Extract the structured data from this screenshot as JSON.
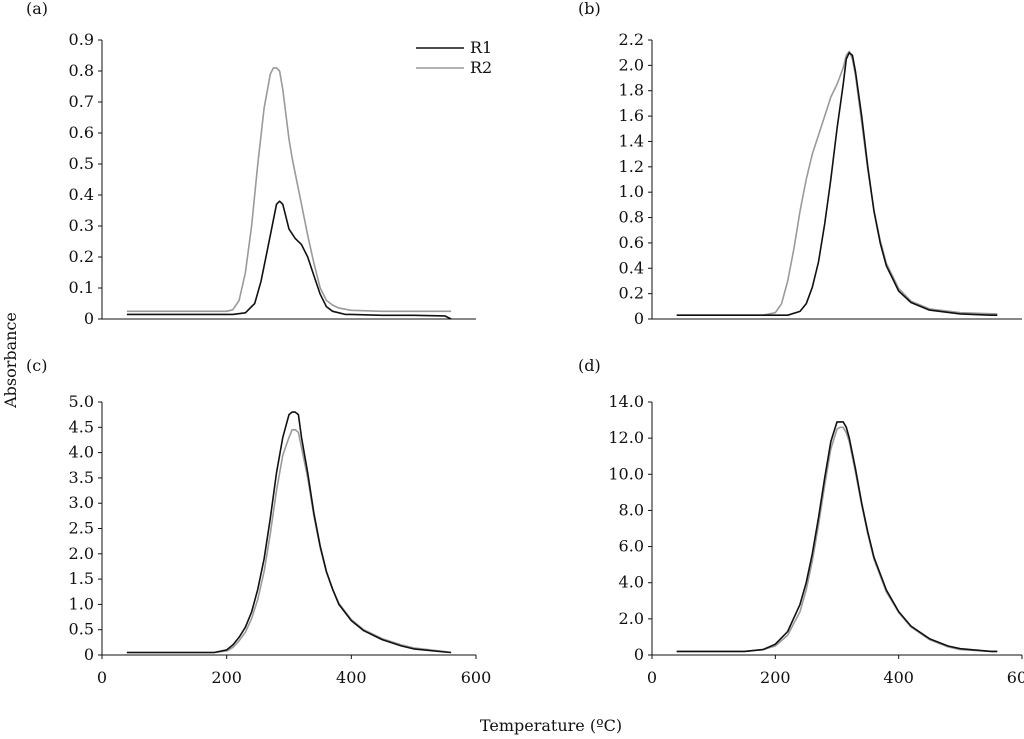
{
  "figure": {
    "ylabel": "Absorbance",
    "xlabel": "Temperature (ºC)",
    "legend": {
      "placement": "top-right of panel (a)",
      "entries": [
        "R1",
        "R2"
      ]
    }
  },
  "colors": {
    "R1": "#111111",
    "R2": "#9a9a9a",
    "axis": "#111111"
  },
  "chart_data": [
    {
      "panel": "(a)",
      "type": "line",
      "xlim": [
        0,
        600
      ],
      "ylim": [
        0,
        0.9
      ],
      "x_ticks_shown": false,
      "y_ticks": [
        "0",
        "0.1",
        "0.2",
        "0.3",
        "0.4",
        "0.5",
        "0.6",
        "0.7",
        "0.8",
        "0.9"
      ],
      "legend": true,
      "series": [
        {
          "name": "R1",
          "x": [
            40,
            100,
            160,
            210,
            230,
            245,
            255,
            265,
            275,
            280,
            285,
            290,
            295,
            300,
            310,
            320,
            330,
            340,
            350,
            360,
            370,
            380,
            390,
            400,
            450,
            500,
            550,
            560
          ],
          "y": [
            0.015,
            0.015,
            0.015,
            0.015,
            0.02,
            0.05,
            0.12,
            0.22,
            0.32,
            0.37,
            0.38,
            0.37,
            0.33,
            0.29,
            0.26,
            0.24,
            0.2,
            0.14,
            0.08,
            0.04,
            0.025,
            0.02,
            0.015,
            0.015,
            0.012,
            0.012,
            0.01,
            0.0
          ]
        },
        {
          "name": "R2",
          "x": [
            40,
            100,
            160,
            200,
            210,
            220,
            230,
            240,
            250,
            260,
            270,
            275,
            280,
            285,
            290,
            295,
            300,
            305,
            310,
            320,
            330,
            340,
            350,
            360,
            370,
            380,
            400,
            450,
            500,
            560
          ],
          "y": [
            0.025,
            0.025,
            0.025,
            0.025,
            0.03,
            0.06,
            0.15,
            0.3,
            0.5,
            0.68,
            0.79,
            0.81,
            0.81,
            0.8,
            0.74,
            0.66,
            0.58,
            0.52,
            0.47,
            0.37,
            0.27,
            0.18,
            0.1,
            0.06,
            0.045,
            0.035,
            0.028,
            0.025,
            0.025,
            0.025
          ]
        }
      ]
    },
    {
      "panel": "(b)",
      "type": "line",
      "xlim": [
        0,
        600
      ],
      "ylim": [
        0,
        2.2
      ],
      "x_ticks_shown": false,
      "y_ticks": [
        "0",
        "0.2",
        "0.4",
        "0.6",
        "0.8",
        "1.0",
        "1.2",
        "1.4",
        "1.6",
        "1.8",
        "2.0",
        "2.2"
      ],
      "legend": false,
      "series": [
        {
          "name": "R1",
          "x": [
            40,
            100,
            150,
            200,
            220,
            240,
            250,
            260,
            270,
            280,
            290,
            300,
            310,
            315,
            320,
            325,
            330,
            340,
            350,
            360,
            370,
            380,
            400,
            420,
            450,
            500,
            550,
            560
          ],
          "y": [
            0.03,
            0.03,
            0.03,
            0.03,
            0.03,
            0.06,
            0.12,
            0.25,
            0.45,
            0.75,
            1.1,
            1.5,
            1.85,
            2.05,
            2.1,
            2.08,
            1.95,
            1.6,
            1.2,
            0.85,
            0.6,
            0.42,
            0.22,
            0.13,
            0.07,
            0.04,
            0.03,
            0.03
          ]
        },
        {
          "name": "R2",
          "x": [
            40,
            100,
            150,
            180,
            200,
            210,
            220,
            230,
            240,
            250,
            260,
            270,
            280,
            290,
            300,
            310,
            315,
            320,
            325,
            330,
            340,
            350,
            360,
            370,
            380,
            400,
            420,
            450,
            500,
            560
          ],
          "y": [
            0.03,
            0.03,
            0.03,
            0.03,
            0.05,
            0.12,
            0.3,
            0.55,
            0.85,
            1.1,
            1.3,
            1.45,
            1.6,
            1.75,
            1.85,
            1.98,
            2.08,
            2.11,
            2.05,
            1.92,
            1.55,
            1.18,
            0.85,
            0.62,
            0.44,
            0.24,
            0.14,
            0.08,
            0.05,
            0.04
          ]
        }
      ]
    },
    {
      "panel": "(c)",
      "type": "line",
      "xlim": [
        0,
        600
      ],
      "ylim": [
        0,
        5.0
      ],
      "x_ticks": [
        "0",
        "200",
        "400",
        "600"
      ],
      "y_ticks": [
        "0",
        "0.5",
        "1.0",
        "1.5",
        "2.0",
        "2.5",
        "3.0",
        "3.5",
        "4.0",
        "4.5",
        "5.0"
      ],
      "legend": false,
      "series": [
        {
          "name": "R1",
          "x": [
            40,
            100,
            150,
            180,
            200,
            210,
            220,
            230,
            240,
            250,
            260,
            270,
            280,
            290,
            300,
            305,
            310,
            315,
            320,
            330,
            340,
            350,
            360,
            370,
            380,
            400,
            420,
            450,
            480,
            500,
            550,
            560
          ],
          "y": [
            0.05,
            0.05,
            0.05,
            0.05,
            0.1,
            0.2,
            0.35,
            0.55,
            0.85,
            1.3,
            1.9,
            2.7,
            3.6,
            4.3,
            4.75,
            4.8,
            4.8,
            4.75,
            4.3,
            3.6,
            2.8,
            2.15,
            1.65,
            1.3,
            1.0,
            0.68,
            0.48,
            0.3,
            0.18,
            0.12,
            0.06,
            0.05
          ]
        },
        {
          "name": "R2",
          "x": [
            40,
            100,
            150,
            180,
            200,
            210,
            220,
            230,
            240,
            250,
            260,
            270,
            280,
            290,
            300,
            305,
            310,
            315,
            320,
            330,
            340,
            350,
            360,
            370,
            380,
            400,
            420,
            450,
            480,
            500,
            550,
            560
          ],
          "y": [
            0.05,
            0.05,
            0.05,
            0.05,
            0.08,
            0.15,
            0.28,
            0.45,
            0.72,
            1.1,
            1.65,
            2.4,
            3.25,
            3.95,
            4.3,
            4.45,
            4.45,
            4.4,
            4.1,
            3.5,
            2.75,
            2.12,
            1.64,
            1.3,
            1.02,
            0.7,
            0.5,
            0.32,
            0.2,
            0.14,
            0.07,
            0.05
          ]
        }
      ]
    },
    {
      "panel": "(d)",
      "type": "line",
      "xlim": [
        0,
        600
      ],
      "ylim": [
        0,
        14.0
      ],
      "x_ticks": [
        "0",
        "200",
        "400",
        "600"
      ],
      "y_ticks": [
        "0",
        "2.0",
        "4.0",
        "6.0",
        "8.0",
        "10.0",
        "12.0",
        "14.0"
      ],
      "legend": false,
      "series": [
        {
          "name": "R1",
          "x": [
            40,
            100,
            150,
            180,
            200,
            220,
            240,
            250,
            260,
            270,
            280,
            290,
            300,
            305,
            310,
            315,
            320,
            330,
            340,
            350,
            360,
            380,
            400,
            420,
            450,
            480,
            500,
            550,
            560
          ],
          "y": [
            0.2,
            0.2,
            0.2,
            0.3,
            0.6,
            1.3,
            2.8,
            4.0,
            5.6,
            7.6,
            9.8,
            11.8,
            12.9,
            12.9,
            12.9,
            12.6,
            12.0,
            10.3,
            8.4,
            6.8,
            5.4,
            3.6,
            2.4,
            1.6,
            0.9,
            0.5,
            0.35,
            0.2,
            0.2
          ]
        },
        {
          "name": "R2",
          "x": [
            40,
            100,
            150,
            180,
            200,
            220,
            240,
            250,
            260,
            270,
            280,
            290,
            300,
            305,
            310,
            315,
            320,
            330,
            340,
            350,
            360,
            380,
            400,
            420,
            450,
            480,
            500,
            550,
            560
          ],
          "y": [
            0.2,
            0.2,
            0.2,
            0.3,
            0.5,
            1.1,
            2.4,
            3.6,
            5.2,
            7.2,
            9.4,
            11.4,
            12.5,
            12.6,
            12.6,
            12.3,
            11.8,
            10.1,
            8.3,
            6.7,
            5.3,
            3.5,
            2.35,
            1.55,
            0.85,
            0.45,
            0.3,
            0.2,
            0.2
          ]
        }
      ]
    }
  ]
}
